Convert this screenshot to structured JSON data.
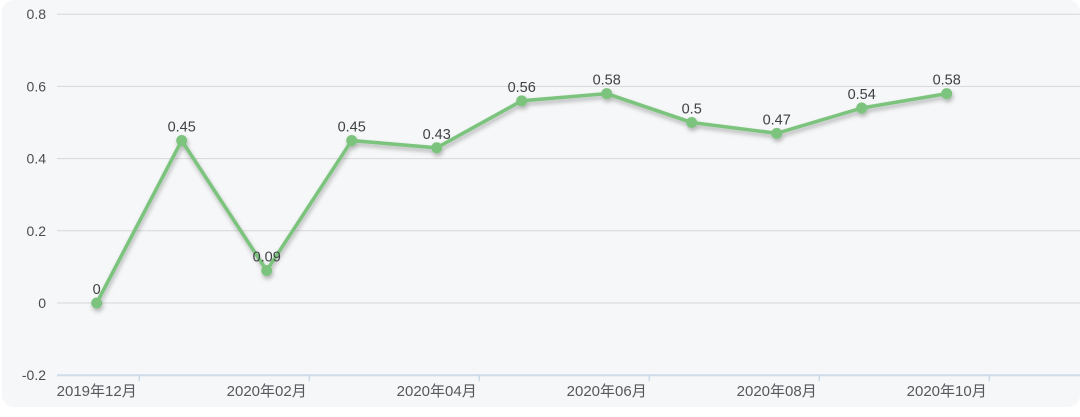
{
  "chart_data": {
    "type": "line",
    "title": "",
    "xlabel": "",
    "ylabel": "",
    "x_tick_labels": [
      "2019年12月",
      "2020年02月",
      "2020年04月",
      "2020年06月",
      "2020年08月",
      "2020年10月"
    ],
    "x_label_every": 2,
    "num_points": 11,
    "values": [
      0,
      0.45,
      0.09,
      0.45,
      0.43,
      0.56,
      0.58,
      0.5,
      0.47,
      0.54,
      0.58
    ],
    "point_labels": [
      "0",
      "0.45",
      "0.09",
      "0.45",
      "0.43",
      "0.56",
      "0.58",
      "0.5",
      "0.47",
      "0.54",
      "0.58"
    ],
    "y_ticks": [
      "0.8",
      "0.6",
      "0.4",
      "0.2",
      "0",
      "-0.2"
    ],
    "ylim": [
      -0.2,
      0.8
    ],
    "grid": true,
    "legend_position": "none",
    "colors": {
      "line": "#7cc47e",
      "marker": "#7cc47e",
      "gridline": "#d7d7d7",
      "axis_line": "#cfdcea",
      "axis_tick": "#b9cee4",
      "value_label": "#3f4245",
      "y_tick_label": "#4a4d50",
      "x_tick_label": "#55585c",
      "panel_background": "#f6f7f8",
      "page_background": "#ffffff"
    }
  }
}
